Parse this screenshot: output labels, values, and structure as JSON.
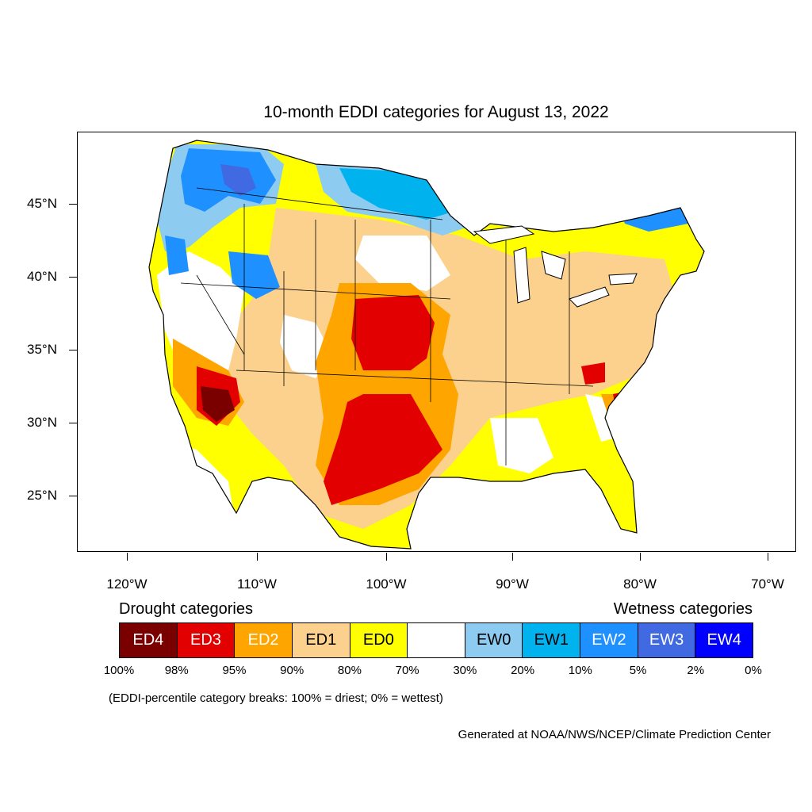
{
  "title": "10-month EDDI categories for August 13, 2022",
  "y_axis_labels": [
    "45°N",
    "40°N",
    "35°N",
    "30°N",
    "25°N"
  ],
  "x_axis_labels": [
    "120°W",
    "110°W",
    "100°W",
    "90°W",
    "80°W",
    "70°W"
  ],
  "legend": {
    "drought_heading": "Drought categories",
    "wetness_heading": "Wetness categories",
    "categories": [
      {
        "label": "ED4",
        "color": "#7a0000",
        "text_color": "#ffffff"
      },
      {
        "label": "ED3",
        "color": "#e30000",
        "text_color": "#ffffff"
      },
      {
        "label": "ED2",
        "color": "#ffa500",
        "text_color": "#ffffff"
      },
      {
        "label": "ED1",
        "color": "#fcd18e",
        "text_color": "#000000"
      },
      {
        "label": "ED0",
        "color": "#ffff00",
        "text_color": "#000000"
      },
      {
        "label": "",
        "color": "#ffffff",
        "text_color": "#000000"
      },
      {
        "label": "EW0",
        "color": "#8ecbf0",
        "text_color": "#000000"
      },
      {
        "label": "EW1",
        "color": "#00b2ee",
        "text_color": "#000000"
      },
      {
        "label": "EW2",
        "color": "#1e90ff",
        "text_color": "#ffffff"
      },
      {
        "label": "EW3",
        "color": "#4169e1",
        "text_color": "#ffffff"
      },
      {
        "label": "EW4",
        "color": "#0000ff",
        "text_color": "#ffffff"
      }
    ],
    "breaks": [
      "100%",
      "98%",
      "95%",
      "90%",
      "80%",
      "70%",
      "30%",
      "20%",
      "10%",
      "5%",
      "2%",
      "0%"
    ]
  },
  "note": "(EDDI-percentile category breaks: 100% = driest; 0% = wettest)",
  "credit": "Generated at NOAA/NWS/NCEP/Climate Prediction Center"
}
